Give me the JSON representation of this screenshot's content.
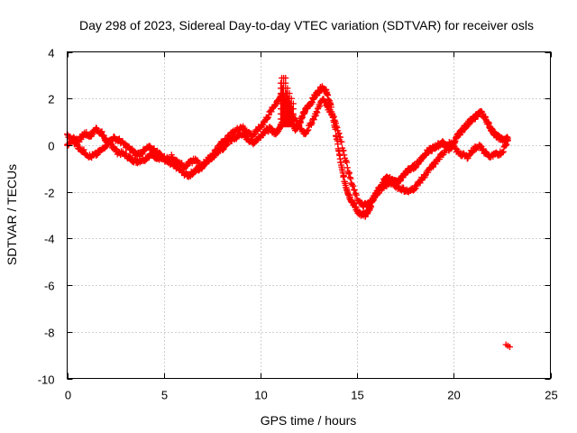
{
  "chart_data": {
    "type": "scatter",
    "title": "Day 298 of 2023, Sidereal Day-to-day VTEC variation (SDTVAR) for receiver osls",
    "xlabel": "GPS time / hours",
    "ylabel": "SDTVAR / TECUs",
    "xlim": [
      0,
      25
    ],
    "ylim": [
      -10,
      4
    ],
    "xticks": [
      0,
      5,
      10,
      15,
      20,
      25
    ],
    "yticks": [
      -10,
      -8,
      -6,
      -4,
      -2,
      0,
      2,
      4
    ],
    "x_tick_labels": [
      "0",
      "5",
      "10",
      "15",
      "20",
      "25"
    ],
    "y_tick_labels": [
      "-10",
      "-8",
      "-6",
      "-4",
      "-2",
      "0",
      "2",
      "4"
    ],
    "grid": true,
    "marker": "plus",
    "color": "#ff0000",
    "series": [
      {
        "name": "SDTVAR",
        "trace_a": {
          "x": [
            0.0,
            0.3,
            0.6,
            0.9,
            1.2,
            1.5,
            1.8,
            2.0,
            2.3,
            2.6,
            3.0,
            3.3,
            3.6,
            4.0,
            4.3,
            4.6,
            5.0,
            5.3,
            5.6,
            6.0,
            6.3,
            6.6,
            6.9,
            7.2,
            7.5,
            7.8,
            8.1,
            8.4,
            8.7,
            9.0,
            9.3,
            9.6,
            9.9,
            10.2,
            10.5,
            10.8,
            11.0,
            11.2,
            11.4,
            11.6,
            11.8,
            12.0,
            12.2,
            12.4,
            12.6,
            12.8,
            13.0,
            13.2,
            13.4,
            13.6,
            13.8,
            14.0,
            14.2,
            14.4,
            14.6,
            14.8,
            15.0,
            15.2,
            15.4,
            15.6,
            15.8,
            16.0,
            16.2,
            16.4,
            16.6,
            16.8,
            17.0,
            17.2,
            17.4,
            17.6,
            17.8,
            18.0,
            18.2,
            18.4,
            18.6,
            18.8,
            19.0,
            19.2,
            19.4,
            19.6,
            19.8,
            20.0,
            20.2,
            20.4,
            20.6,
            20.8,
            21.0,
            21.2,
            21.4,
            21.6,
            21.8,
            22.0,
            22.2,
            22.4,
            22.6,
            22.8
          ],
          "y": [
            0.0,
            0.3,
            0.2,
            0.5,
            0.4,
            0.7,
            0.5,
            0.2,
            0.0,
            -0.3,
            -0.4,
            -0.6,
            -0.7,
            -0.6,
            -0.4,
            -0.5,
            -0.6,
            -0.8,
            -0.9,
            -1.2,
            -1.3,
            -1.1,
            -1.0,
            -0.7,
            -0.5,
            -0.3,
            -0.1,
            0.2,
            0.3,
            0.5,
            0.3,
            0.1,
            0.3,
            0.6,
            0.7,
            0.5,
            0.8,
            1.0,
            1.2,
            1.0,
            0.7,
            0.9,
            1.3,
            1.6,
            1.8,
            2.1,
            2.3,
            2.5,
            2.3,
            1.8,
            1.0,
            0.0,
            -1.0,
            -1.7,
            -2.2,
            -2.5,
            -2.8,
            -3.0,
            -3.0,
            -2.8,
            -2.4,
            -2.0,
            -1.8,
            -1.5,
            -1.4,
            -1.5,
            -1.6,
            -1.5,
            -1.3,
            -1.1,
            -1.0,
            -0.9,
            -0.7,
            -0.5,
            -0.3,
            -0.2,
            -0.1,
            0.0,
            0.1,
            0.0,
            -0.2,
            0.1,
            0.4,
            0.6,
            0.8,
            1.0,
            1.1,
            1.3,
            1.4,
            1.2,
            0.9,
            0.6,
            0.4,
            0.3,
            0.2,
            0.3
          ]
        },
        "trace_b": {
          "x": [
            0.0,
            0.3,
            0.6,
            0.9,
            1.2,
            1.5,
            1.8,
            2.1,
            2.4,
            2.7,
            3.0,
            3.3,
            3.6,
            3.9,
            4.2,
            4.5,
            4.8,
            5.1,
            5.4,
            5.7,
            6.0,
            6.3,
            6.6,
            6.9,
            7.2,
            7.5,
            7.8,
            8.1,
            8.4,
            8.7,
            9.0,
            9.3,
            9.6,
            9.9,
            10.2,
            10.5,
            10.8,
            11.1,
            11.4,
            11.7,
            12.0,
            12.3,
            12.6,
            12.9,
            13.2,
            13.5,
            13.8,
            14.1,
            14.4,
            14.7,
            15.0,
            15.3,
            15.6,
            15.9,
            16.2,
            16.5,
            16.8,
            17.1,
            17.4,
            17.7,
            18.0,
            18.3,
            18.6,
            18.9,
            19.2,
            19.5,
            19.8,
            20.1,
            20.4,
            20.7,
            21.0,
            21.3,
            21.6,
            21.9,
            22.2,
            22.5,
            22.8
          ],
          "y": [
            0.4,
            0.2,
            -0.1,
            -0.3,
            -0.5,
            -0.4,
            -0.2,
            0.1,
            0.3,
            0.2,
            0.0,
            -0.2,
            -0.4,
            -0.3,
            -0.1,
            -0.2,
            -0.4,
            -0.6,
            -0.5,
            -0.7,
            -0.9,
            -0.8,
            -0.6,
            -0.9,
            -0.7,
            -0.4,
            -0.1,
            0.2,
            0.4,
            0.6,
            0.8,
            0.6,
            0.4,
            0.7,
            1.0,
            1.4,
            1.8,
            2.2,
            1.5,
            1.2,
            0.8,
            0.5,
            0.9,
            1.4,
            2.0,
            1.6,
            1.2,
            0.4,
            -0.6,
            -1.6,
            -2.3,
            -2.6,
            -2.5,
            -2.2,
            -1.9,
            -1.7,
            -1.6,
            -1.8,
            -1.9,
            -2.0,
            -1.8,
            -1.5,
            -1.2,
            -0.9,
            -0.6,
            -0.3,
            0.1,
            -0.2,
            -0.4,
            -0.5,
            -0.2,
            0.0,
            -0.3,
            -0.5,
            -0.4,
            -0.3,
            0.2
          ]
        },
        "spikes": {
          "x": [
            11.05,
            11.1,
            11.15,
            11.2,
            11.25,
            11.3,
            11.35,
            11.4,
            11.45,
            11.5,
            11.55,
            11.6,
            11.65,
            11.7
          ],
          "y": [
            2.7,
            3.1,
            2.5,
            3.0,
            2.2,
            2.9,
            2.4,
            2.6,
            2.0,
            2.3,
            1.8,
            2.1,
            1.6,
            1.9
          ]
        },
        "outlier": {
          "x": [
            22.7,
            22.8,
            22.9
          ],
          "y": [
            -8.55,
            -8.6,
            -8.65
          ]
        }
      }
    ]
  }
}
